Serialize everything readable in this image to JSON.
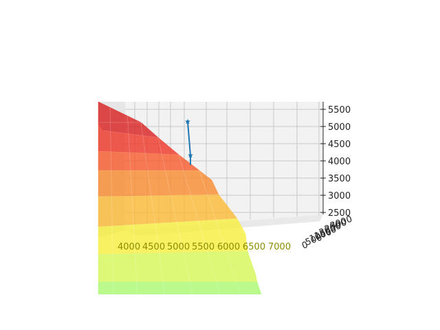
{
  "chart_data": {
    "type": "surface3d",
    "title": "",
    "xlabel": "",
    "ylabel": "",
    "zlabel": "",
    "x_ticks": [
      "4000",
      "4500",
      "5000",
      "5500",
      "6000",
      "6500",
      "7000"
    ],
    "y_ticks": [
      "0",
      "500",
      "1000",
      "1500",
      "2000",
      "2500",
      "3000"
    ],
    "z_ticks": [
      "2500",
      "3000",
      "3500",
      "4000",
      "4500",
      "5000",
      "5500"
    ],
    "zlim": [
      2300,
      5600
    ],
    "grid": true,
    "surface": {
      "colormap": "jet (upper range: green-yellow-orange-red)",
      "alpha": 0.7
    },
    "path": {
      "color": "#1f77b4",
      "marker": "star",
      "z_values": [
        5050,
        4020
      ]
    }
  }
}
